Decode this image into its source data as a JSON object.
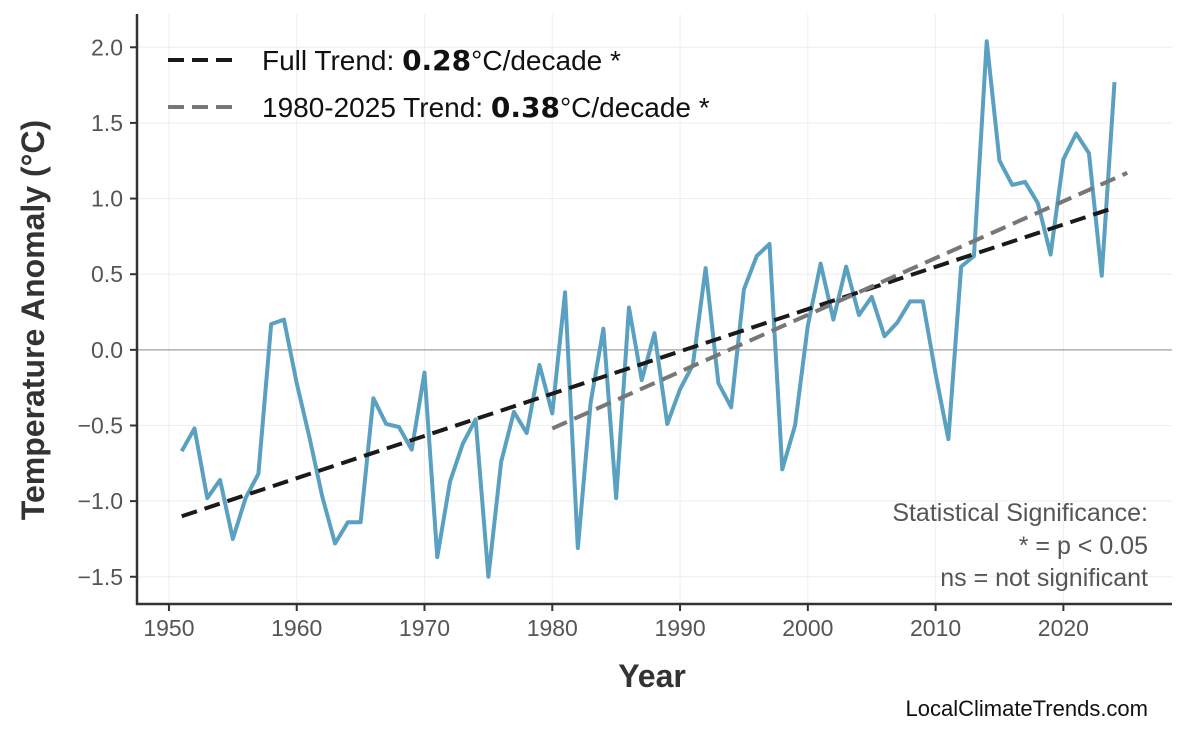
{
  "chart_data": {
    "type": "line",
    "xlabel": "Year",
    "ylabel": "Temperature Anomaly (°C)",
    "xlim": [
      1947.5,
      2028.5
    ],
    "ylim": [
      -1.68,
      2.22
    ],
    "grid": true,
    "x_ticks": [
      1950,
      1960,
      1970,
      1980,
      1990,
      2000,
      2010,
      2020
    ],
    "y_ticks": [
      -1.5,
      -1.0,
      -0.5,
      0.0,
      0.5,
      1.0,
      1.5,
      2.0
    ],
    "y_tick_labels": [
      "−1.5",
      "−1.0",
      "−0.5",
      "0.0",
      "0.5",
      "1.0",
      "1.5",
      "2.0"
    ],
    "series": [
      {
        "color": "#5aa0c0",
        "x": [
          1951,
          1952,
          1953,
          1954,
          1955,
          1956,
          1957,
          1958,
          1959,
          1960,
          1961,
          1962,
          1963,
          1964,
          1965,
          1966,
          1967,
          1968,
          1969,
          1970,
          1971,
          1972,
          1973,
          1974,
          1975,
          1976,
          1977,
          1978,
          1979,
          1980,
          1981,
          1982,
          1983,
          1984,
          1985,
          1986,
          1987,
          1988,
          1989,
          1990,
          1991,
          1992,
          1993,
          1994,
          1995,
          1996,
          1997,
          1998,
          1999,
          2000,
          2001,
          2002,
          2003,
          2004,
          2005,
          2006,
          2007,
          2008,
          2009,
          2010,
          2011,
          2012,
          2013,
          2014,
          2015,
          2016,
          2017,
          2018,
          2019,
          2020,
          2021,
          2022,
          2023,
          2024
        ],
        "y": [
          -0.67,
          -0.52,
          -0.98,
          -0.86,
          -1.25,
          -0.98,
          -0.82,
          0.17,
          0.2,
          -0.22,
          -0.58,
          -0.97,
          -1.28,
          -1.14,
          -1.14,
          -0.32,
          -0.49,
          -0.51,
          -0.66,
          -0.15,
          -1.37,
          -0.87,
          -0.62,
          -0.46,
          -1.5,
          -0.74,
          -0.41,
          -0.55,
          -0.1,
          -0.42,
          0.38,
          -1.31,
          -0.35,
          0.14,
          -0.98,
          0.28,
          -0.2,
          0.11,
          -0.49,
          -0.26,
          -0.1,
          0.54,
          -0.22,
          -0.38,
          0.4,
          0.62,
          0.7,
          -0.79,
          -0.5,
          0.16,
          0.57,
          0.2,
          0.55,
          0.23,
          0.35,
          0.09,
          0.18,
          0.32,
          0.32,
          -0.16,
          -0.59,
          0.55,
          0.62,
          2.04,
          1.25,
          1.09,
          1.11,
          0.97,
          0.63,
          1.26,
          1.43,
          1.3,
          0.49,
          1.77
        ]
      }
    ],
    "trends": [
      {
        "label_prefix": "Full Trend: ",
        "value": "0.28",
        "label_suffix": "°C/decade *",
        "color": "#1a1a1a",
        "x": [
          1951,
          2024
        ],
        "y": [
          -1.1,
          0.94
        ]
      },
      {
        "label_prefix": "1980-2025 Trend: ",
        "value": "0.38",
        "label_suffix": "°C/decade *",
        "color": "#777777",
        "x": [
          1980,
          2025
        ],
        "y": [
          -0.52,
          1.17
        ]
      }
    ],
    "legend_placement": "top-left",
    "annotation": [
      "Statistical Significance:",
      "* = p < 0.05",
      "ns = not significant"
    ],
    "credit": "LocalClimateTrends.com"
  }
}
